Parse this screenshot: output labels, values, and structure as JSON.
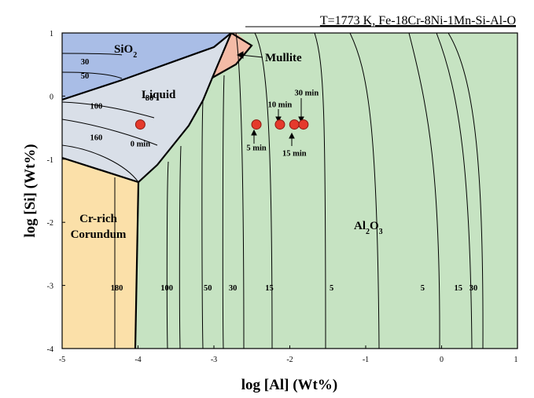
{
  "chart_data": {
    "type": "scatter",
    "title": "T=1773 K, Fe-18Cr-8Ni-1Mn-Si-Al-O",
    "xlabel": "log [Al] (Wt%)",
    "ylabel": "log [Si] (Wt%)",
    "xlim": [
      -5,
      1
    ],
    "ylim": [
      -4,
      1
    ],
    "x_ticks": [
      "-5",
      "-4",
      "-3",
      "-2",
      "-1",
      "0",
      "1"
    ],
    "y_ticks": [
      "1",
      "0",
      "-1",
      "-2",
      "-3",
      "-4"
    ],
    "grid": false,
    "legend": "none",
    "colors": {
      "sio2": "#a9bde6",
      "liquid": "#d9dfe8",
      "mullite": "#f4bba6",
      "corundum": "#fbe0a9",
      "al2o3": "#c6e3c2",
      "points": "#e53a2c",
      "lines": "#000000"
    },
    "regions": {
      "sio2": "SiO",
      "sio2_sub": "2",
      "liquid": "Liquid",
      "mullite": "Mullite",
      "corundum_line1": "Cr-rich",
      "corundum_line2": "Corundum",
      "al2o3_al": "Al",
      "al2o3_sub2": "2",
      "al2o3_o": "O",
      "al2o3_sub3": "3"
    },
    "isoline_labels": [
      {
        "label": "30",
        "x": -4.7,
        "y": 0.5
      },
      {
        "label": "50",
        "x": -4.7,
        "y": 0.28
      },
      {
        "label": "100",
        "x": -4.55,
        "y": -0.2
      },
      {
        "label": "80",
        "x": -3.85,
        "y": -0.07
      },
      {
        "label": "160",
        "x": -4.55,
        "y": -0.7
      },
      {
        "label": "180",
        "x": -4.28,
        "y": -3.08
      },
      {
        "label": "100",
        "x": -3.62,
        "y": -3.08
      },
      {
        "label": "50",
        "x": -3.08,
        "y": -3.08
      },
      {
        "label": "30",
        "x": -2.75,
        "y": -3.08
      },
      {
        "label": "15",
        "x": -2.27,
        "y": -3.08
      },
      {
        "label": "5",
        "x": -1.45,
        "y": -3.08
      },
      {
        "label": "5",
        "x": -0.25,
        "y": -3.08
      },
      {
        "label": "15",
        "x": 0.22,
        "y": -3.08
      },
      {
        "label": "30",
        "x": 0.42,
        "y": -3.08
      }
    ],
    "series": [
      {
        "points": [
          {
            "x": -3.97,
            "y": -0.45,
            "label": "0 min"
          },
          {
            "x": -2.44,
            "y": -0.45,
            "label": "5 min"
          },
          {
            "x": -2.13,
            "y": -0.45,
            "label": "10 min"
          },
          {
            "x": -1.94,
            "y": -0.45,
            "label": "15 min"
          },
          {
            "x": -1.82,
            "y": -0.45,
            "label": "30 min"
          }
        ]
      }
    ]
  }
}
